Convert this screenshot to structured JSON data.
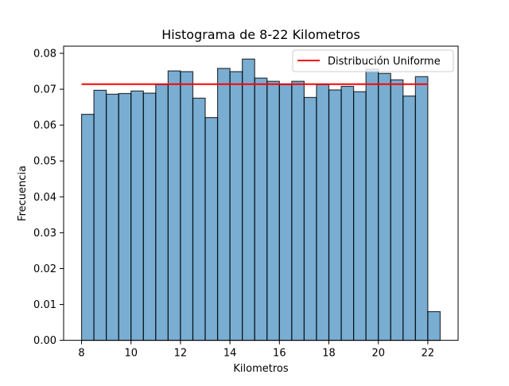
{
  "chart_data": {
    "type": "bar",
    "title": "Histograma de 8-22 Kilometros",
    "xlabel": "Kilometros",
    "ylabel": "Frecuencia",
    "xlim": [
      7.275,
      23.225
    ],
    "ylim": [
      0.0,
      0.082
    ],
    "x_ticks": [
      8,
      10,
      12,
      14,
      16,
      18,
      20,
      22
    ],
    "y_ticks": [
      0.0,
      0.01,
      0.02,
      0.03,
      0.04,
      0.05,
      0.06,
      0.07,
      0.08
    ],
    "y_tick_labels": [
      "0.00",
      "0.01",
      "0.02",
      "0.03",
      "0.04",
      "0.05",
      "0.06",
      "0.07",
      "0.08"
    ],
    "bin_start": 8.0,
    "bin_width": 0.5,
    "bins": [
      [
        8.0,
        8.5
      ],
      [
        8.5,
        9.0
      ],
      [
        9.0,
        9.5
      ],
      [
        9.5,
        10.0
      ],
      [
        10.0,
        10.5
      ],
      [
        10.5,
        11.0
      ],
      [
        11.0,
        11.5
      ],
      [
        11.5,
        12.0
      ],
      [
        12.0,
        12.5
      ],
      [
        12.5,
        13.0
      ],
      [
        13.0,
        13.5
      ],
      [
        13.5,
        14.0
      ],
      [
        14.0,
        14.5
      ],
      [
        14.5,
        15.0
      ],
      [
        15.0,
        15.5
      ],
      [
        15.5,
        16.0
      ],
      [
        16.0,
        16.5
      ],
      [
        16.5,
        17.0
      ],
      [
        17.0,
        17.5
      ],
      [
        17.5,
        18.0
      ],
      [
        18.0,
        18.5
      ],
      [
        18.5,
        19.0
      ],
      [
        19.0,
        19.5
      ],
      [
        19.5,
        20.0
      ],
      [
        20.0,
        20.5
      ],
      [
        20.5,
        21.0
      ],
      [
        21.0,
        21.5
      ],
      [
        21.5,
        22.0
      ],
      [
        22.0,
        22.5
      ]
    ],
    "values": [
      0.063,
      0.0697,
      0.0686,
      0.0688,
      0.0695,
      0.0689,
      0.0713,
      0.0751,
      0.0749,
      0.0675,
      0.0621,
      0.0758,
      0.0749,
      0.0784,
      0.0731,
      0.0722,
      0.0713,
      0.0722,
      0.0677,
      0.0713,
      0.0698,
      0.0708,
      0.0693,
      0.0756,
      0.0744,
      0.0726,
      0.0681,
      0.0735,
      0.008
    ],
    "bar_color": "#1f77b4",
    "bar_alpha": 0.6,
    "bar_edgecolor": "#000000",
    "uniform_line": {
      "name": "Distribución Uniforme",
      "x": [
        8,
        22
      ],
      "y": 0.0714,
      "color": "#ff0000"
    },
    "legend": {
      "placement": "top-right",
      "entries": [
        "Distribución Uniforme"
      ]
    },
    "grid": false
  }
}
